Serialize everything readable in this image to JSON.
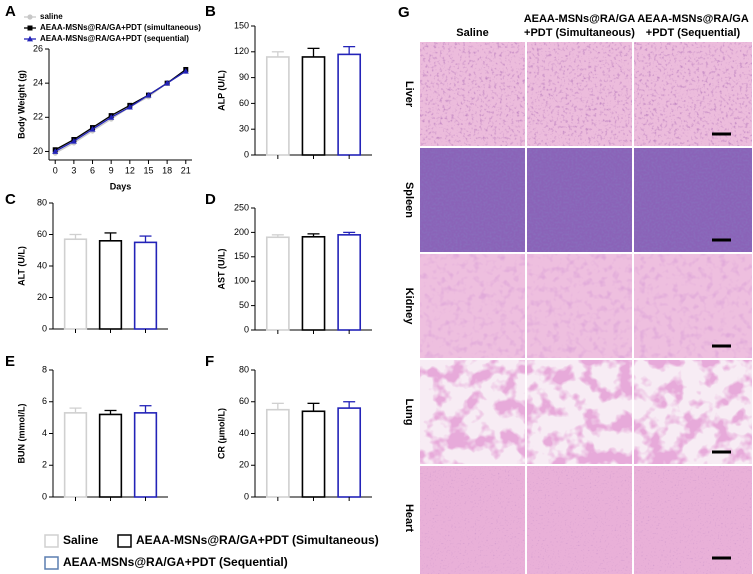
{
  "chart_data": [
    {
      "type": "line",
      "panel": "A",
      "xlabel": "Days",
      "ylabel": "Body Weight (g)",
      "x": [
        0,
        3,
        6,
        9,
        12,
        15,
        18,
        21
      ],
      "xlim": [
        -1,
        22
      ],
      "xticks": [
        0,
        3,
        6,
        9,
        12,
        15,
        18,
        21
      ],
      "ylim": [
        19.5,
        26
      ],
      "yticks": [
        20,
        22,
        24,
        26
      ],
      "legend": "top-left",
      "series": [
        {
          "name": "saline",
          "color": "#c8c8c8",
          "marker": "circle",
          "values": [
            19.9,
            20.5,
            21.2,
            21.9,
            22.6,
            23.2,
            24.0,
            24.7
          ]
        },
        {
          "name": "AEAA-MSNs@RA/GA+PDT (simultaneous)",
          "color": "#000000",
          "marker": "square",
          "values": [
            20.1,
            20.7,
            21.4,
            22.1,
            22.7,
            23.3,
            24.0,
            24.8
          ]
        },
        {
          "name": "AEAA-MSNs@RA/GA+PDT (sequential)",
          "color": "#2323b8",
          "marker": "triangle",
          "values": [
            20.0,
            20.6,
            21.3,
            22.0,
            22.6,
            23.3,
            24.0,
            24.7
          ]
        }
      ]
    },
    {
      "type": "bar",
      "panel": "B",
      "ylabel": "ALP (U/L)",
      "categories": [
        null,
        null,
        null
      ],
      "values": [
        114,
        114,
        117
      ],
      "errors": [
        6,
        10,
        9
      ],
      "colors": [
        "#d0d0d0",
        "#000000",
        "#2323b8"
      ],
      "ylim": [
        0,
        150
      ],
      "yticks": [
        0,
        30,
        60,
        90,
        120,
        150
      ]
    },
    {
      "type": "bar",
      "panel": "C",
      "ylabel": "ALT (U/L)",
      "categories": [
        null,
        null,
        null
      ],
      "values": [
        57,
        56,
        55
      ],
      "errors": [
        3,
        5,
        4
      ],
      "colors": [
        "#d0d0d0",
        "#000000",
        "#2323b8"
      ],
      "ylim": [
        0,
        80
      ],
      "yticks": [
        0,
        20,
        40,
        60,
        80
      ]
    },
    {
      "type": "bar",
      "panel": "D",
      "ylabel": "AST (U/L)",
      "categories": [
        null,
        null,
        null
      ],
      "values": [
        190,
        191,
        195
      ],
      "errors": [
        5,
        6,
        5
      ],
      "colors": [
        "#d0d0d0",
        "#000000",
        "#2323b8"
      ],
      "ylim": [
        0,
        250
      ],
      "yticks": [
        0,
        50,
        100,
        150,
        200,
        250
      ]
    },
    {
      "type": "bar",
      "panel": "E",
      "ylabel": "BUN (mmol/L)",
      "categories": [
        null,
        null,
        null
      ],
      "values": [
        5.3,
        5.2,
        5.3
      ],
      "errors": [
        0.3,
        0.25,
        0.45
      ],
      "colors": [
        "#d0d0d0",
        "#000000",
        "#2323b8"
      ],
      "ylim": [
        0,
        8
      ],
      "yticks": [
        0,
        2,
        4,
        6,
        8
      ]
    },
    {
      "type": "bar",
      "panel": "F",
      "ylabel": "CR (μmol/L)",
      "categories": [
        null,
        null,
        null
      ],
      "values": [
        55,
        54,
        56
      ],
      "errors": [
        4,
        5,
        4
      ],
      "colors": [
        "#d0d0d0",
        "#000000",
        "#2323b8"
      ],
      "ylim": [
        0,
        80
      ],
      "yticks": [
        0,
        20,
        40,
        60,
        80
      ]
    }
  ],
  "shared_legend": [
    {
      "name": "Saline",
      "color": "#d0d0d0"
    },
    {
      "name": "AEAA-MSNs@RA/GA+PDT (Simultaneous)",
      "color": "#000000"
    },
    {
      "name": "AEAA-MSNs@RA/GA+PDT (Sequential)",
      "color": "#5b7fb0"
    }
  ],
  "histology": {
    "panel": "G",
    "columns": [
      [
        "Saline"
      ],
      [
        "AEAA-MSNs@RA/GA",
        "+PDT (Simultaneous)"
      ],
      [
        "AEAA-MSNs@RA/GA",
        "+PDT (Sequential)"
      ]
    ],
    "rows": [
      "Liver",
      "Spleen",
      "Kidney",
      "Lung",
      "Heart"
    ]
  }
}
